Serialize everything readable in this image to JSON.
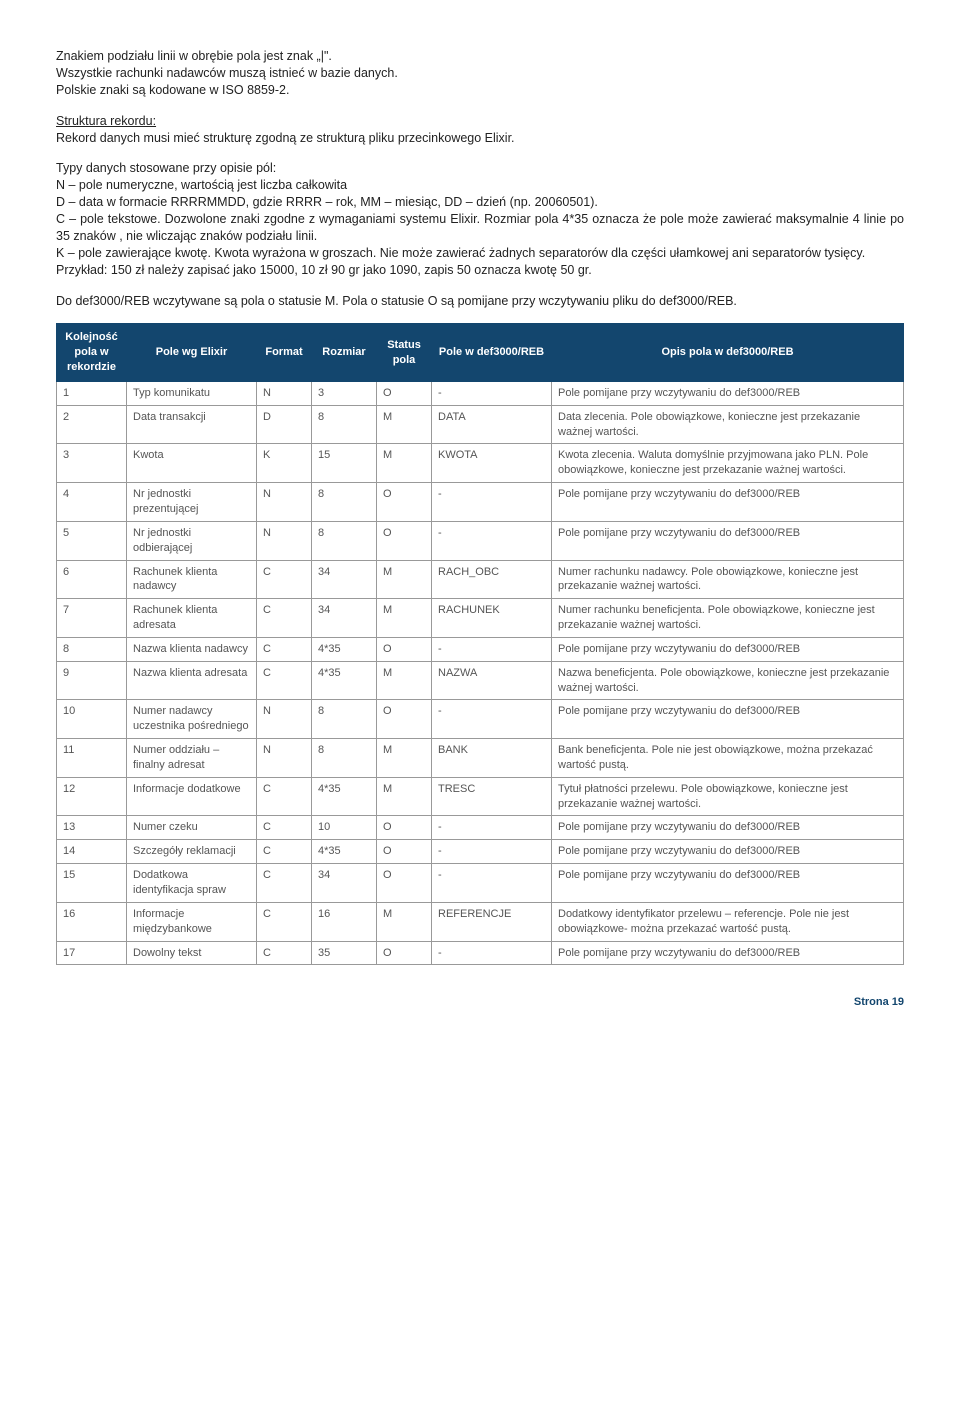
{
  "intro": {
    "p1": "Znakiem podziału linii w obrębie pola jest znak „|\".\nWszystkie rachunki nadawców muszą istnieć w bazie danych.\nPolskie znaki są kodowane w ISO 8859-2.",
    "structTitle": "Struktura rekordu:",
    "structBody": "Rekord danych musi mieć strukturę zgodną ze strukturą pliku przecinkowego Elixir.",
    "p3": "Typy danych stosowane przy opisie pól:\nN – pole numeryczne, wartością jest liczba całkowita\nD – data w formacie RRRRMMDD, gdzie RRRR – rok, MM – miesiąc, DD – dzień (np. 20060501).\nC – pole tekstowe. Dozwolone znaki zgodne z wymaganiami systemu Elixir. Rozmiar pola 4*35 oznacza że pole może zawierać maksymalnie 4 linie po 35 znaków , nie wliczając znaków podziału linii.\nK – pole zawierające kwotę. Kwota wyrażona w groszach. Nie może zawierać żadnych separatorów dla części ułamkowej ani separatorów tysięcy.\nPrzykład: 150 zł należy zapisać jako 15000, 10 zł 90 gr jako 1090, zapis 50 oznacza kwotę 50 gr.",
    "p4": "Do def3000/REB wczytywane są pola o statusie M. Pola o statusie O są pomijane przy wczytywaniu pliku do def3000/REB."
  },
  "headers": {
    "c1": "Kolejność pola w rekordzie",
    "c2": "Pole wg Elixir",
    "c3": "Format",
    "c4": "Rozmiar",
    "c5": "Status pola",
    "c6": "Pole w def3000/REB",
    "c7": "Opis pola w def3000/REB"
  },
  "rows": [
    {
      "n": "1",
      "elixir": "Typ komunikatu",
      "fmt": "N",
      "size": "3",
      "st": "O",
      "field": "-",
      "desc": "Pole pomijane przy wczytywaniu do def3000/REB"
    },
    {
      "n": "2",
      "elixir": "Data transakcji",
      "fmt": "D",
      "size": "8",
      "st": "M",
      "field": "DATA",
      "desc": "Data zlecenia. Pole obowiązkowe, konieczne jest przekazanie ważnej wartości."
    },
    {
      "n": "3",
      "elixir": "Kwota",
      "fmt": "K",
      "size": "15",
      "st": "M",
      "field": "KWOTA",
      "desc": "Kwota zlecenia. Waluta domyślnie przyjmowana jako PLN. Pole obowiązkowe, konieczne jest przekazanie ważnej wartości."
    },
    {
      "n": "4",
      "elixir": "Nr jednostki prezentującej",
      "fmt": "N",
      "size": "8",
      "st": "O",
      "field": "-",
      "desc": "Pole pomijane przy wczytywaniu do def3000/REB"
    },
    {
      "n": "5",
      "elixir": "Nr jednostki odbierającej",
      "fmt": "N",
      "size": "8",
      "st": "O",
      "field": "-",
      "desc": "Pole pomijane przy wczytywaniu do def3000/REB"
    },
    {
      "n": "6",
      "elixir": "Rachunek klienta nadawcy",
      "fmt": "C",
      "size": "34",
      "st": "M",
      "field": "RACH_OBC",
      "desc": "Numer rachunku nadawcy. Pole obowiązkowe, konieczne jest przekazanie ważnej wartości."
    },
    {
      "n": "7",
      "elixir": "Rachunek klienta adresata",
      "fmt": "C",
      "size": "34",
      "st": "M",
      "field": "RACHUNEK",
      "desc": "Numer rachunku beneficjenta. Pole obowiązkowe, konieczne jest przekazanie ważnej wartości."
    },
    {
      "n": "8",
      "elixir": "Nazwa klienta nadawcy",
      "fmt": "C",
      "size": "4*35",
      "st": "O",
      "field": "-",
      "desc": "Pole pomijane przy wczytywaniu do def3000/REB"
    },
    {
      "n": "9",
      "elixir": "Nazwa klienta adresata",
      "fmt": "C",
      "size": "4*35",
      "st": "M",
      "field": "NAZWA",
      "desc": "Nazwa beneficjenta. Pole obowiązkowe, konieczne jest przekazanie ważnej wartości."
    },
    {
      "n": "10",
      "elixir": "Numer nadawcy uczestnika pośredniego",
      "fmt": "N",
      "size": "8",
      "st": "O",
      "field": "-",
      "desc": "Pole pomijane przy wczytywaniu do def3000/REB"
    },
    {
      "n": "11",
      "elixir": "Numer oddziału – finalny adresat",
      "fmt": "N",
      "size": "8",
      "st": "M",
      "field": "BANK",
      "desc": "Bank beneficjenta. Pole nie jest obowiązkowe, można przekazać wartość pustą."
    },
    {
      "n": "12",
      "elixir": "Informacje dodatkowe",
      "fmt": "C",
      "size": "4*35",
      "st": "M",
      "field": "TRESC",
      "desc": "Tytuł płatności przelewu. Pole obowiązkowe, konieczne jest przekazanie ważnej wartości."
    },
    {
      "n": "13",
      "elixir": "Numer czeku",
      "fmt": "C",
      "size": "10",
      "st": "O",
      "field": "-",
      "desc": "Pole pomijane przy wczytywaniu do def3000/REB"
    },
    {
      "n": "14",
      "elixir": "Szczegóły reklamacji",
      "fmt": "C",
      "size": "4*35",
      "st": "O",
      "field": "-",
      "desc": "Pole pomijane przy wczytywaniu do def3000/REB"
    },
    {
      "n": "15",
      "elixir": "Dodatkowa identyfikacja spraw",
      "fmt": "C",
      "size": "34",
      "st": "O",
      "field": "-",
      "desc": "Pole pomijane przy wczytywaniu do def3000/REB"
    },
    {
      "n": "16",
      "elixir": "Informacje międzybankowe",
      "fmt": "C",
      "size": "16",
      "st": "M",
      "field": "REFERENCJE",
      "desc": "Dodatkowy identyfikator przelewu – referencje. Pole nie jest obowiązkowe- można przekazać wartość pustą."
    },
    {
      "n": "17",
      "elixir": "Dowolny tekst",
      "fmt": "C",
      "size": "35",
      "st": "O",
      "field": "-",
      "desc": "Pole pomijane przy wczytywaniu do def3000/REB"
    }
  ],
  "footer": "Strona 19",
  "colWidths": [
    "70",
    "130",
    "55",
    "65",
    "55",
    "120",
    "auto"
  ]
}
